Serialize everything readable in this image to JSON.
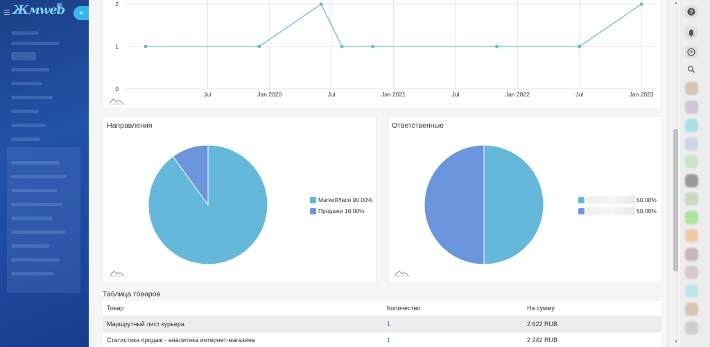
{
  "sidebar": {
    "logo": "Жмweb",
    "close_glyph": "×"
  },
  "line_chart": {
    "chart_data": {
      "type": "line",
      "title": "",
      "y_ticks": [
        "0",
        "1",
        "2"
      ],
      "x_ticks": [
        "Jul",
        "Jan 2020",
        "Jul",
        "Jan 2021",
        "Jul",
        "Jan 2022",
        "Jul",
        "Jan 2023"
      ],
      "x": [
        "2019-01",
        "2019-12",
        "2020-06",
        "2020-08",
        "2020-11",
        "2021-11",
        "2022-07",
        "2023-01"
      ],
      "values": [
        1,
        1,
        2,
        1,
        1,
        1,
        1,
        2
      ],
      "ylim": [
        0,
        2
      ],
      "color": "#6ab9d8"
    }
  },
  "pie_directions": {
    "title": "Направления",
    "chart_data": {
      "type": "pie",
      "labels": [
        "MarketPlace",
        "Продажи"
      ],
      "values": [
        90,
        10
      ],
      "legend": [
        "MarketPlace 90.00%",
        "Продажи 10.00%"
      ],
      "colors": [
        "#66b8da",
        "#6b95dc"
      ]
    }
  },
  "pie_responsible": {
    "title": "Ответственные",
    "chart_data": {
      "type": "pie",
      "labels": [
        "",
        ""
      ],
      "values": [
        50,
        50
      ],
      "legend": [
        "50.00%",
        "50.00%"
      ],
      "colors": [
        "#66b8da",
        "#6b95dc"
      ]
    }
  },
  "products_table": {
    "title": "Таблица товаров",
    "columns": [
      "Товар",
      "Количество",
      "На сумму"
    ],
    "rows": [
      {
        "name": "Маршрутный лист курьера",
        "qty": "1",
        "sum": "2 622 RUB"
      },
      {
        "name": "Статистика продаж - аналитика интернет-магазина",
        "qty": "1",
        "sum": "2 242 RUB"
      }
    ]
  },
  "right_rail": {
    "icons": [
      "help-icon",
      "bell-icon",
      "chat-icon",
      "search-icon"
    ],
    "avatar_colors": [
      "#d9c4b8",
      "#cfc5d4",
      "#a9dfe8",
      "#d0d8e8",
      "#cde6c4",
      "#9a9a9a",
      "#c9d8c2",
      "#a8e49a",
      "#f3c8a6",
      "#c7b7b7",
      "#d8c8cf",
      "#bfe4ea",
      "#d5c5b5",
      "#cfcfcf"
    ]
  },
  "scrollbar": {
    "up_glyph": "▲",
    "down_glyph": "▼"
  }
}
